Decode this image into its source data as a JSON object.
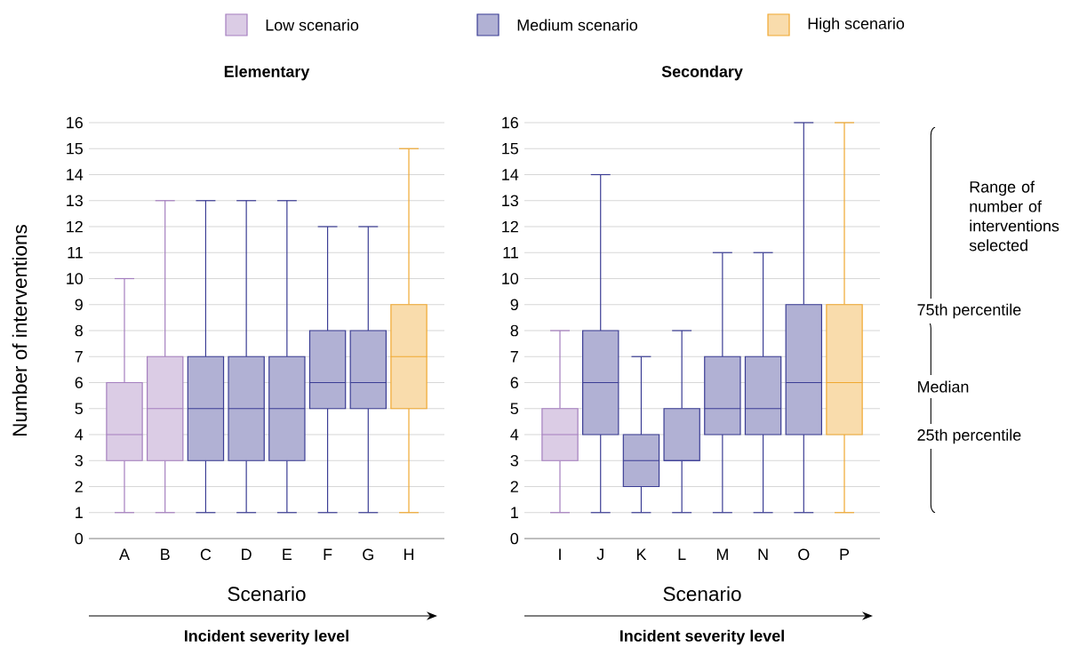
{
  "chart_data": [
    {
      "type": "box",
      "title": "Elementary",
      "xlabel": "Scenario",
      "ylabel": "Number of interventions",
      "categories": [
        "A",
        "B",
        "C",
        "D",
        "E",
        "F",
        "G",
        "H"
      ],
      "ylim": [
        0,
        16
      ],
      "yticks": [
        0,
        1,
        2,
        3,
        4,
        5,
        6,
        7,
        8,
        9,
        10,
        11,
        12,
        13,
        14,
        15,
        16
      ],
      "grid": "y",
      "legend": "top",
      "annotations": [
        "Incident severity level"
      ],
      "series": [
        {
          "name": "Low scenario",
          "color": "#a57fbf",
          "boxes": [
            {
              "low": 1,
              "q1": 3,
              "median": 4,
              "q3": 6,
              "high": 10
            },
            {
              "low": 1,
              "q1": 3,
              "median": 5,
              "q3": 7,
              "high": 13
            },
            null,
            null,
            null,
            null,
            null,
            null
          ]
        },
        {
          "name": "Medium scenario",
          "color": "#3b3d94",
          "boxes": [
            null,
            null,
            {
              "low": 1,
              "q1": 3,
              "median": 5,
              "q3": 7,
              "high": 13
            },
            {
              "low": 1,
              "q1": 3,
              "median": 5,
              "q3": 7,
              "high": 13
            },
            {
              "low": 1,
              "q1": 3,
              "median": 5,
              "q3": 7,
              "high": 13
            },
            {
              "low": 1,
              "q1": 5,
              "median": 6,
              "q3": 8,
              "high": 12
            },
            {
              "low": 1,
              "q1": 5,
              "median": 6,
              "q3": 8,
              "high": 12
            },
            null
          ]
        },
        {
          "name": "High scenario",
          "color": "#f0a830",
          "boxes": [
            null,
            null,
            null,
            null,
            null,
            null,
            null,
            {
              "low": 1,
              "q1": 5,
              "median": 7,
              "q3": 9,
              "high": 15
            }
          ]
        }
      ]
    },
    {
      "type": "box",
      "title": "Secondary",
      "xlabel": "Scenario",
      "categories": [
        "I",
        "J",
        "K",
        "L",
        "M",
        "N",
        "O",
        "P"
      ],
      "ylim": [
        0,
        16
      ],
      "yticks": [
        0,
        1,
        2,
        3,
        4,
        5,
        6,
        7,
        8,
        9,
        10,
        11,
        12,
        13,
        14,
        15,
        16
      ],
      "grid": "y",
      "annotations": [
        "Incident severity level",
        "Range of number of interventions selected",
        "75th percentile",
        "Median",
        "25th percentile"
      ],
      "series": [
        {
          "color": "#a57fbf",
          "boxes": [
            {
              "low": 1,
              "q1": 3,
              "median": 4,
              "q3": 5,
              "high": 8
            },
            null,
            null,
            null,
            null,
            null,
            null,
            null
          ]
        },
        {
          "color": "#3b3d94",
          "boxes": [
            null,
            {
              "low": 1,
              "q1": 4,
              "median": 6,
              "q3": 8,
              "high": 14
            },
            {
              "low": 1,
              "q1": 2,
              "median": 3,
              "q3": 4,
              "high": 7
            },
            {
              "low": 1,
              "q1": 3,
              "median": 3,
              "q3": 5,
              "high": 8
            },
            {
              "low": 1,
              "q1": 4,
              "median": 5,
              "q3": 7,
              "high": 11
            },
            {
              "low": 1,
              "q1": 4,
              "median": 5,
              "q3": 7,
              "high": 11
            },
            {
              "low": 1,
              "q1": 4,
              "median": 6,
              "q3": 9,
              "high": 16
            },
            null
          ]
        },
        {
          "color": "#f0a830",
          "boxes": [
            null,
            null,
            null,
            null,
            null,
            null,
            null,
            {
              "low": 1,
              "q1": 4,
              "median": 6,
              "q3": 9,
              "high": 16
            }
          ]
        }
      ]
    }
  ]
}
